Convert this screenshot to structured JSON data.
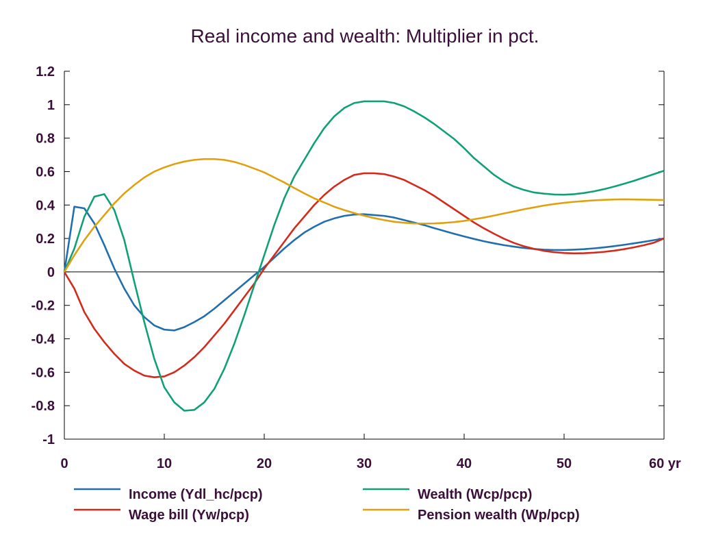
{
  "chart_data": {
    "type": "line",
    "title": "Real income and wealth: Multiplier in pct.",
    "xlabel": "",
    "ylabel": "",
    "x_unit_suffix": " yr",
    "xlim": [
      0,
      60
    ],
    "ylim": [
      -1,
      1.2
    ],
    "xticks": [
      0,
      10,
      20,
      30,
      40,
      50,
      60
    ],
    "xtick_labels": [
      "0",
      "10",
      "20",
      "30",
      "40",
      "50",
      "60 yr"
    ],
    "yticks": [
      -1,
      -0.8,
      -0.6,
      -0.4,
      -0.2,
      0,
      0.2,
      0.4,
      0.6,
      0.8,
      1,
      1.2
    ],
    "ytick_labels": [
      "-1",
      "-0.8",
      "-0.6",
      "-0.4",
      "-0.2",
      "0",
      "0.2",
      "0.4",
      "0.6",
      "0.8",
      "1",
      "1.2"
    ],
    "grid": false,
    "zero_line": true,
    "legend_position": "bottom",
    "series": [
      {
        "name": "Income (Ydl_hc/pcp)",
        "color": "#1f6fb0",
        "x": [
          0,
          1,
          2,
          3,
          4,
          5,
          6,
          7,
          8,
          9,
          10,
          11,
          12,
          13,
          14,
          15,
          16,
          17,
          18,
          19,
          20,
          21,
          22,
          23,
          24,
          25,
          26,
          27,
          28,
          29,
          30,
          31,
          32,
          33,
          34,
          35,
          36,
          37,
          38,
          39,
          40,
          41,
          42,
          43,
          44,
          45,
          46,
          47,
          48,
          49,
          50,
          51,
          52,
          53,
          54,
          55,
          56,
          57,
          58,
          59,
          60
        ],
        "values": [
          0,
          0.39,
          0.38,
          0.29,
          0.16,
          0.02,
          -0.1,
          -0.2,
          -0.27,
          -0.32,
          -0.345,
          -0.35,
          -0.33,
          -0.3,
          -0.265,
          -0.22,
          -0.17,
          -0.12,
          -0.07,
          -0.02,
          0.03,
          0.085,
          0.14,
          0.19,
          0.235,
          0.27,
          0.3,
          0.32,
          0.335,
          0.343,
          0.345,
          0.34,
          0.335,
          0.325,
          0.31,
          0.295,
          0.28,
          0.262,
          0.245,
          0.228,
          0.212,
          0.197,
          0.183,
          0.171,
          0.16,
          0.151,
          0.143,
          0.137,
          0.133,
          0.131,
          0.131,
          0.133,
          0.136,
          0.141,
          0.147,
          0.154,
          0.162,
          0.171,
          0.18,
          0.19,
          0.2
        ]
      },
      {
        "name": "Wage bill (Yw/pcp)",
        "color": "#d42a1c",
        "x": [
          0,
          1,
          2,
          3,
          4,
          5,
          6,
          7,
          8,
          9,
          10,
          11,
          12,
          13,
          14,
          15,
          16,
          17,
          18,
          19,
          20,
          21,
          22,
          23,
          24,
          25,
          26,
          27,
          28,
          29,
          30,
          31,
          32,
          33,
          34,
          35,
          36,
          37,
          38,
          39,
          40,
          41,
          42,
          43,
          44,
          45,
          46,
          47,
          48,
          49,
          50,
          51,
          52,
          53,
          54,
          55,
          56,
          57,
          58,
          59,
          60
        ],
        "values": [
          0,
          -0.1,
          -0.24,
          -0.34,
          -0.42,
          -0.49,
          -0.55,
          -0.59,
          -0.62,
          -0.63,
          -0.625,
          -0.6,
          -0.56,
          -0.51,
          -0.45,
          -0.38,
          -0.31,
          -0.23,
          -0.15,
          -0.07,
          0.02,
          0.1,
          0.18,
          0.26,
          0.33,
          0.4,
          0.46,
          0.51,
          0.55,
          0.58,
          0.59,
          0.59,
          0.585,
          0.57,
          0.55,
          0.52,
          0.49,
          0.455,
          0.415,
          0.375,
          0.335,
          0.295,
          0.26,
          0.228,
          0.198,
          0.173,
          0.153,
          0.138,
          0.126,
          0.118,
          0.113,
          0.111,
          0.112,
          0.115,
          0.12,
          0.127,
          0.136,
          0.147,
          0.16,
          0.175,
          0.2
        ]
      },
      {
        "name": "Wealth (Wcp/pcp)",
        "color": "#10a078",
        "x": [
          0,
          1,
          2,
          3,
          4,
          5,
          6,
          7,
          8,
          9,
          10,
          11,
          12,
          13,
          14,
          15,
          16,
          17,
          18,
          19,
          20,
          21,
          22,
          23,
          24,
          25,
          26,
          27,
          28,
          29,
          30,
          31,
          32,
          33,
          34,
          35,
          36,
          37,
          38,
          39,
          40,
          41,
          42,
          43,
          44,
          45,
          46,
          47,
          48,
          49,
          50,
          51,
          52,
          53,
          54,
          55,
          56,
          57,
          58,
          59,
          60
        ],
        "values": [
          0,
          0.14,
          0.33,
          0.45,
          0.465,
          0.37,
          0.19,
          -0.06,
          -0.3,
          -0.52,
          -0.69,
          -0.78,
          -0.83,
          -0.825,
          -0.78,
          -0.7,
          -0.58,
          -0.43,
          -0.26,
          -0.08,
          0.1,
          0.28,
          0.44,
          0.57,
          0.67,
          0.77,
          0.86,
          0.93,
          0.98,
          1.01,
          1.02,
          1.02,
          1.02,
          1.01,
          0.99,
          0.96,
          0.925,
          0.885,
          0.84,
          0.795,
          0.74,
          0.68,
          0.63,
          0.58,
          0.54,
          0.51,
          0.49,
          0.475,
          0.468,
          0.463,
          0.462,
          0.465,
          0.472,
          0.482,
          0.495,
          0.51,
          0.527,
          0.545,
          0.565,
          0.585,
          0.605
        ]
      },
      {
        "name": "Pension wealth (Wp/pcp)",
        "color": "#e0a10e",
        "x": [
          0,
          1,
          2,
          3,
          4,
          5,
          6,
          7,
          8,
          9,
          10,
          11,
          12,
          13,
          14,
          15,
          16,
          17,
          18,
          19,
          20,
          21,
          22,
          23,
          24,
          25,
          26,
          27,
          28,
          29,
          30,
          31,
          32,
          33,
          34,
          35,
          36,
          37,
          38,
          39,
          40,
          41,
          42,
          43,
          44,
          45,
          46,
          47,
          48,
          49,
          50,
          51,
          52,
          53,
          54,
          55,
          56,
          57,
          58,
          59,
          60
        ],
        "values": [
          0,
          0.1,
          0.19,
          0.27,
          0.34,
          0.41,
          0.47,
          0.52,
          0.565,
          0.6,
          0.625,
          0.645,
          0.66,
          0.67,
          0.675,
          0.675,
          0.67,
          0.658,
          0.64,
          0.618,
          0.595,
          0.565,
          0.535,
          0.502,
          0.47,
          0.44,
          0.415,
          0.39,
          0.37,
          0.352,
          0.336,
          0.322,
          0.31,
          0.3,
          0.294,
          0.29,
          0.289,
          0.29,
          0.293,
          0.298,
          0.305,
          0.315,
          0.325,
          0.337,
          0.35,
          0.362,
          0.375,
          0.386,
          0.397,
          0.406,
          0.413,
          0.419,
          0.424,
          0.428,
          0.431,
          0.433,
          0.434,
          0.433,
          0.432,
          0.431,
          0.43
        ]
      }
    ]
  }
}
